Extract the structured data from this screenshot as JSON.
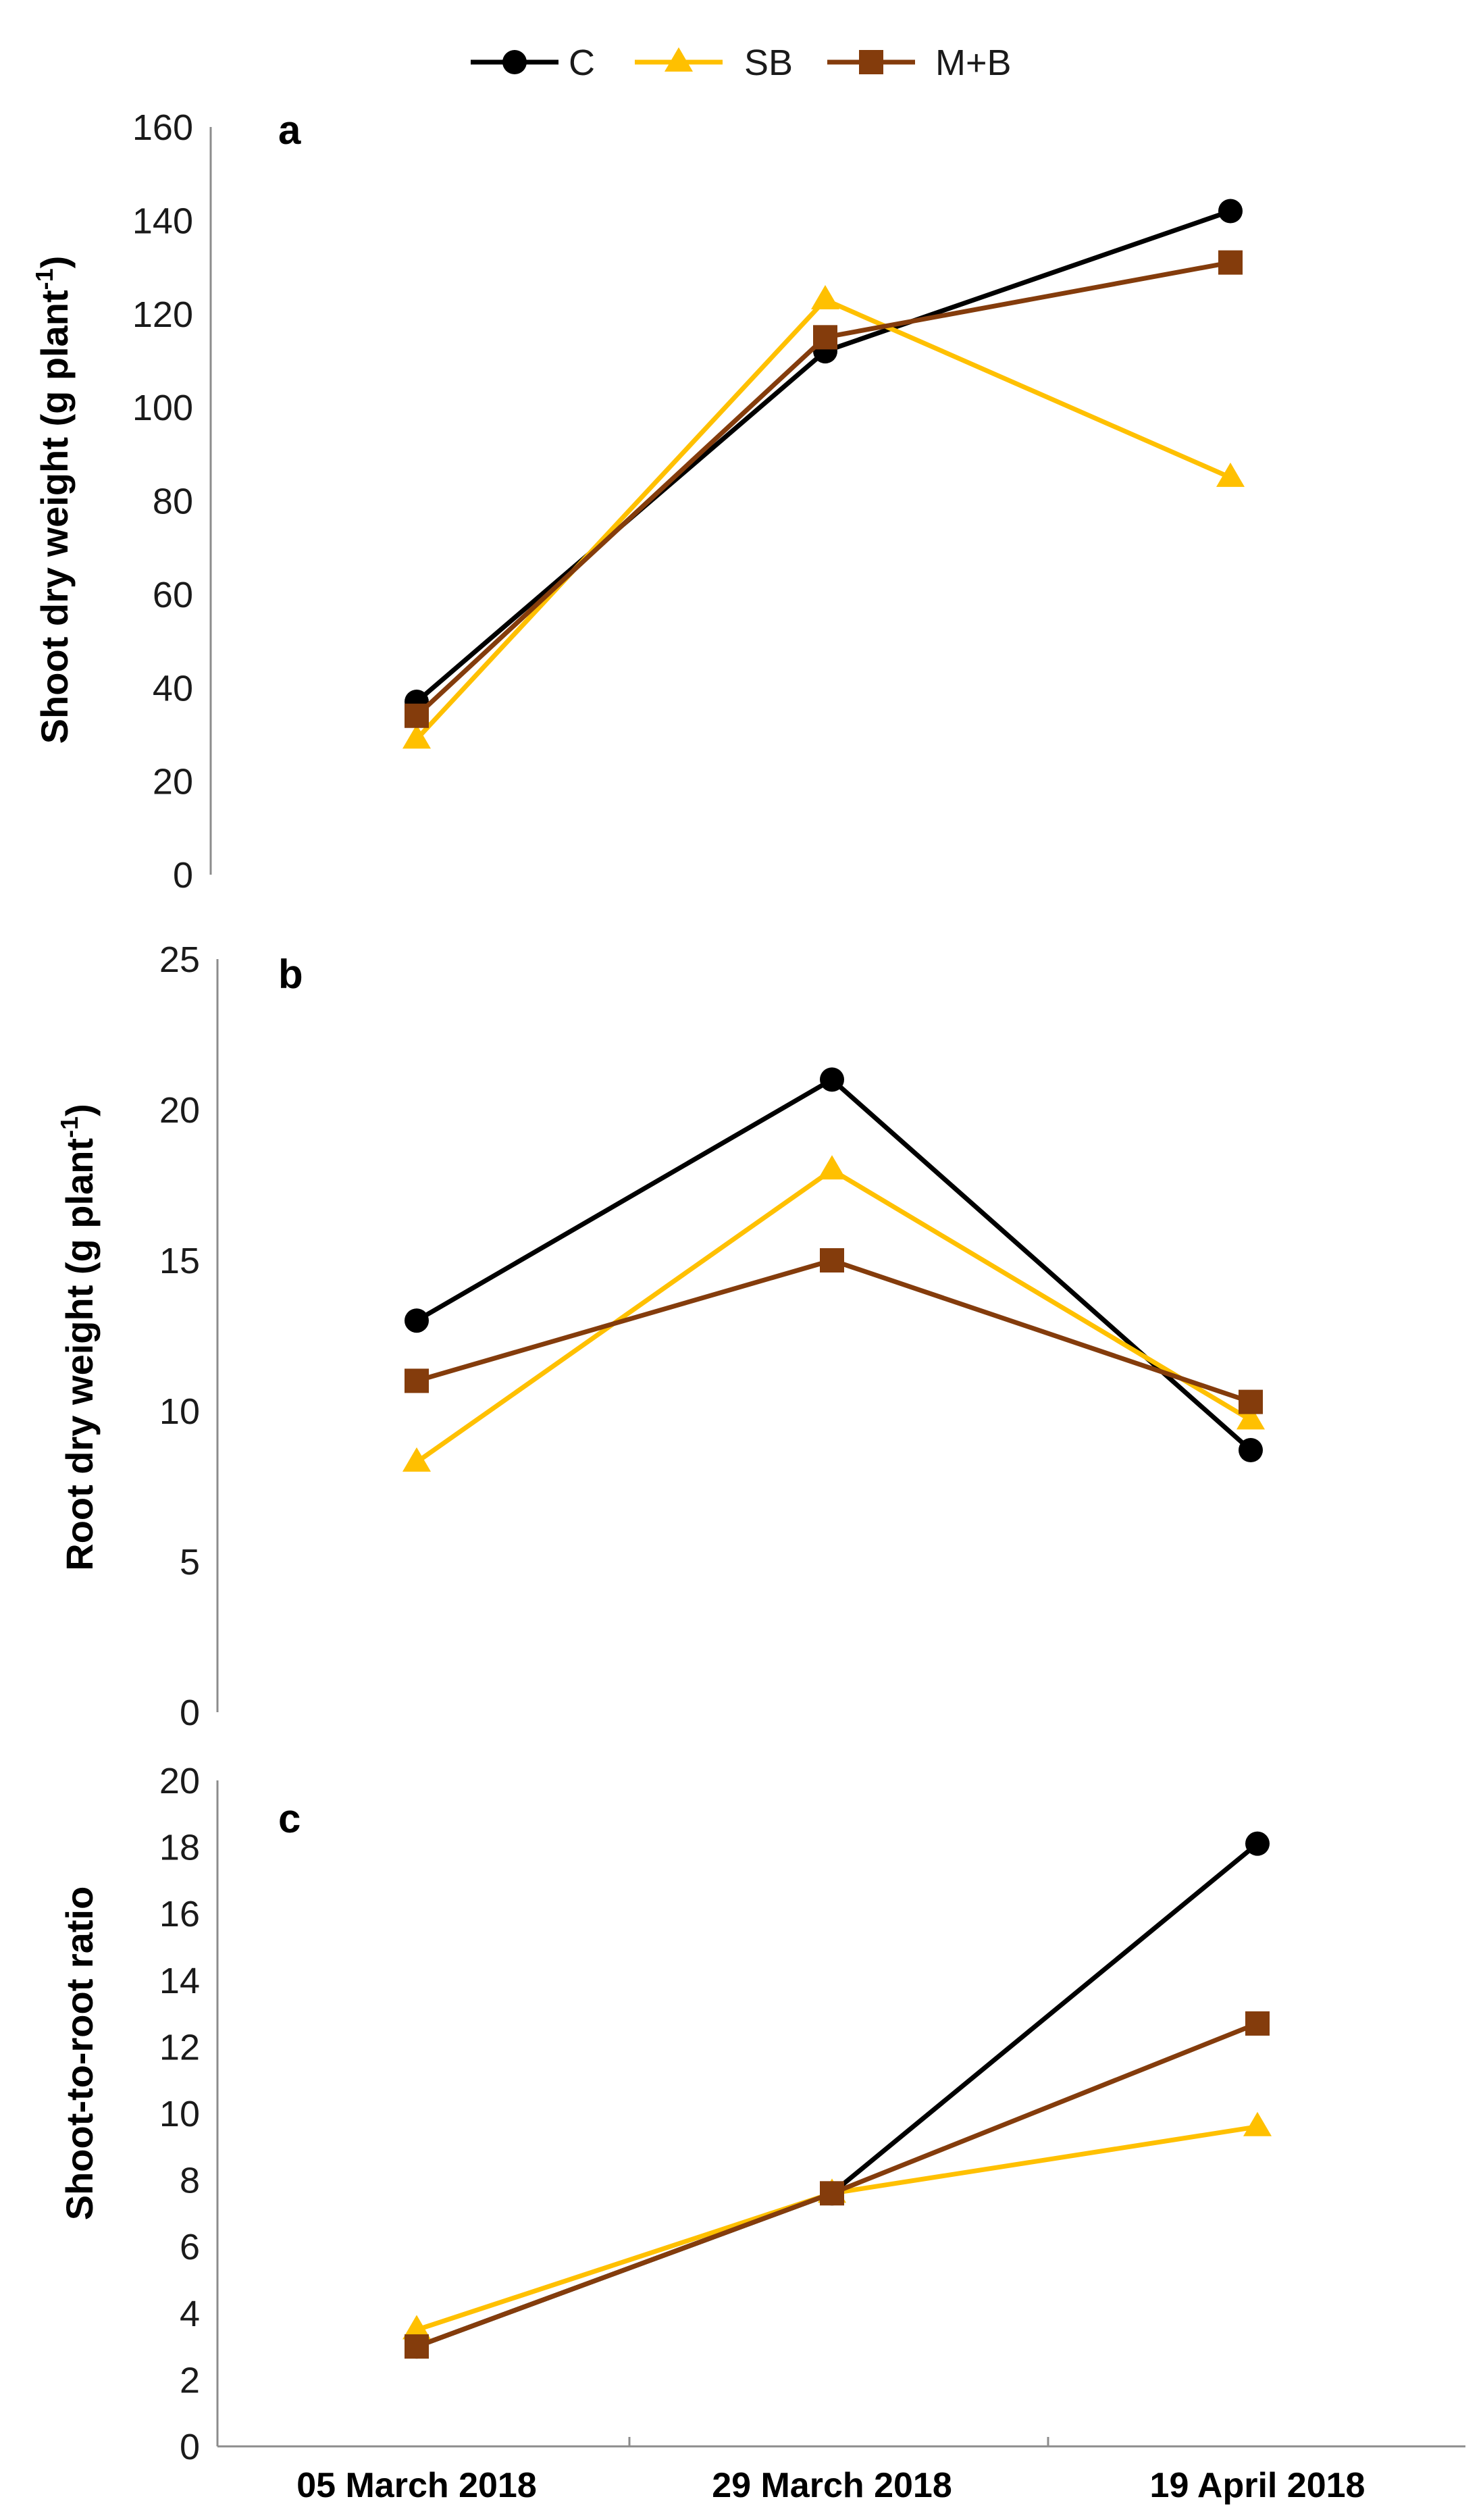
{
  "legend": [
    {
      "key": "C",
      "label": "C",
      "color": "#000000",
      "marker": "circle"
    },
    {
      "key": "SB",
      "label": "SB",
      "color": "#FFC000",
      "marker": "triangle"
    },
    {
      "key": "M+B",
      "label": "M+B",
      "color": "#843C0C",
      "marker": "square"
    }
  ],
  "chart_data": [
    {
      "panel": "a",
      "type": "line",
      "categories": [
        "05 March 2018",
        "29 March 2018",
        "19 April 2018"
      ],
      "ylabel": "Shoot dry weight (g plant-1)",
      "ylabel_main": "Shoot dry weight (g plant",
      "ylabel_sup": "-1",
      "ylabel_end": ")",
      "ylim": [
        0,
        160
      ],
      "yticks": [
        0,
        20,
        40,
        60,
        80,
        100,
        120,
        140,
        160
      ],
      "series": [
        {
          "name": "C",
          "values": [
            37,
            112,
            142
          ]
        },
        {
          "name": "SB",
          "values": [
            29,
            123,
            85
          ]
        },
        {
          "name": "M+B",
          "values": [
            34,
            115,
            131
          ]
        }
      ]
    },
    {
      "panel": "b",
      "type": "line",
      "categories": [
        "05 March 2018",
        "29 March 2018",
        "19 April 2018"
      ],
      "ylabel": "Root dry weight (g plant-1)",
      "ylabel_main": "Root dry weight (g plant",
      "ylabel_sup": "-1",
      "ylabel_end": ")",
      "ylim": [
        0,
        25
      ],
      "yticks": [
        0,
        5,
        10,
        15,
        20,
        25
      ],
      "series": [
        {
          "name": "C",
          "values": [
            13,
            21,
            8.7
          ]
        },
        {
          "name": "SB",
          "values": [
            8.3,
            18,
            9.7
          ]
        },
        {
          "name": "M+B",
          "values": [
            11,
            15,
            10.3
          ]
        }
      ]
    },
    {
      "panel": "c",
      "type": "line",
      "categories": [
        "05 March 2018",
        "29 March 2018",
        "19 April 2018"
      ],
      "ylabel": "Shoot-to-root ratio",
      "ylabel_main": "Shoot-to-root ratio",
      "ylabel_sup": "",
      "ylabel_end": "",
      "xlabels": [
        "05 March 2018",
        "29 March 2018",
        "19 April 2018"
      ],
      "ylim": [
        0,
        20
      ],
      "yticks": [
        0,
        2,
        4,
        6,
        8,
        10,
        12,
        14,
        16,
        18,
        20
      ],
      "series": [
        {
          "name": "C",
          "values": [
            3.0,
            7.6,
            18.1
          ]
        },
        {
          "name": "SB",
          "values": [
            3.5,
            7.6,
            9.6
          ]
        },
        {
          "name": "M+B",
          "values": [
            3.0,
            7.6,
            12.7
          ]
        }
      ]
    }
  ]
}
